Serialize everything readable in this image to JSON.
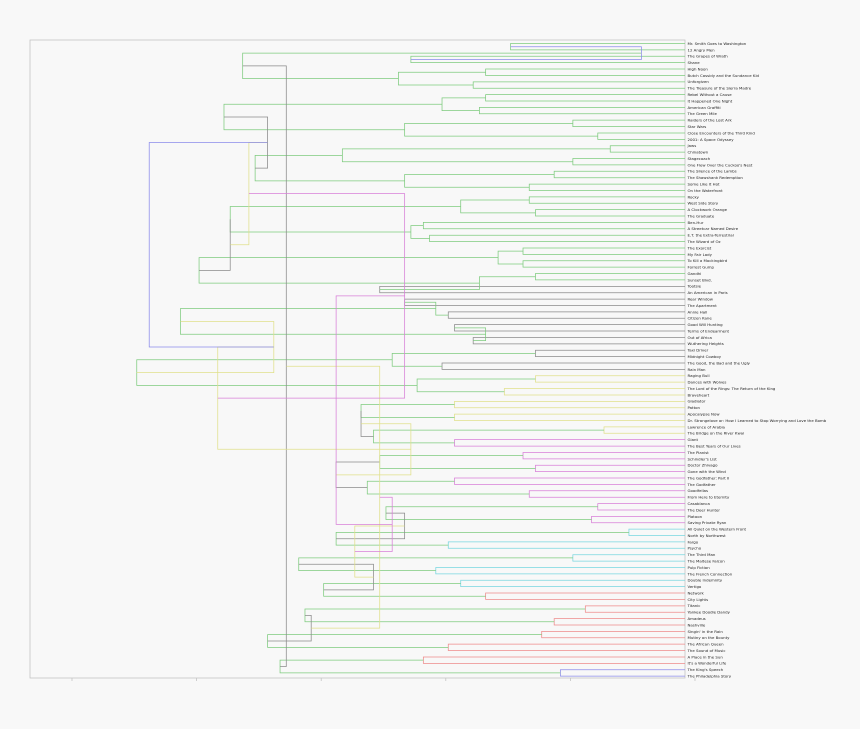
{
  "chart_data": {
    "type": "dendrogram",
    "orientation": "right",
    "grid": false,
    "colors": {
      "green": "#7ecb7e",
      "grey": "#8a8a8a",
      "yellow": "#e0e08a",
      "magenta": "#d77fd7",
      "cyan": "#77d6df",
      "red": "#ee8a8a",
      "blue": "#8b8bea",
      "axis": "#c4c4c4",
      "text": "#222222"
    },
    "leaves": [
      "Mr. Smith Goes to Washington",
      "12 Angry Men",
      "The Grapes of Wrath",
      "Shane",
      "High Noon",
      "Butch Cassidy and the Sundance Kid",
      "Unforgiven",
      "The Treasure of the Sierra Madre",
      "Rebel Without a Cause",
      "It Happened One Night",
      "American Graffiti",
      "The Green Mile",
      "Raiders of the Lost Ark",
      "Star Wars",
      "Close Encounters of the Third Kind",
      "2001: A Space Odyssey",
      "Jaws",
      "Chinatown",
      "Stagecoach",
      "One Flew Over the Cuckoo's Nest",
      "The Silence of the Lambs",
      "The Shawshank Redemption",
      "Some Like It Hot",
      "On the Waterfront",
      "Rocky",
      "West Side Story",
      "A Clockwork Orange",
      "The Graduate",
      "Ben-Hur",
      "A Streetcar Named Desire",
      "E.T. the Extra-Terrestrial",
      "The Wizard of Oz",
      "The Exorcist",
      "My Fair Lady",
      "To Kill a Mockingbird",
      "Forrest Gump",
      "Gandhi",
      "Sunset Blvd.",
      "Tootsie",
      "An American in Paris",
      "Rear Window",
      "The Apartment",
      "Annie Hall",
      "Citizen Kane",
      "Good Will Hunting",
      "Terms of Endearment",
      "Out of Africa",
      "Wuthering Heights",
      "Taxi Driver",
      "Midnight Cowboy",
      "The Good, the Bad and the Ugly",
      "Rain Man",
      "Raging Bull",
      "Dances with Wolves",
      "The Lord of the Rings: The Return of the King",
      "Braveheart",
      "Gladiator",
      "Patton",
      "Apocalypse Now",
      "Dr. Strangelove or: How I Learned to Stop Worrying and Love the Bomb",
      "Lawrence of Arabia",
      "The Bridge on the River Kwai",
      "Giant",
      "The Best Years of Our Lives",
      "The Pianist",
      "Schindler's List",
      "Doctor Zhivago",
      "Gone with the Wind",
      "The Godfather: Part II",
      "The Godfather",
      "Goodfellas",
      "From Here to Eternity",
      "Casablanca",
      "The Deer Hunter",
      "Platoon",
      "Saving Private Ryan",
      "All Quiet on the Western Front",
      "North by Northwest",
      "Fargo",
      "Psycho",
      "The Third Man",
      "The Maltese Falcon",
      "Pulp Fiction",
      "The French Connection",
      "Double Indemnity",
      "Vertigo",
      "Network",
      "City Lights",
      "Titanic",
      "Yankee Doodle Dandy",
      "Amadeus",
      "Nashville",
      "Singin' in the Rain",
      "Mutiny on the Bounty",
      "The African Queen",
      "The Sound of Music",
      "A Place in the Sun",
      "It's a Wonderful Life",
      "The King's Speech",
      "The Philadelphia Story"
    ],
    "merges": [
      [
        0,
        1,
        0.72,
        "green"
      ],
      [
        2,
        3,
        0.56,
        "green"
      ],
      [
        4,
        5,
        0.68,
        "green"
      ],
      [
        6,
        7,
        0.66,
        "green"
      ],
      [
        8,
        9,
        0.68,
        "green"
      ],
      [
        10,
        11,
        0.67,
        "green"
      ],
      [
        12,
        13,
        0.82,
        "green"
      ],
      [
        14,
        15,
        0.86,
        "green"
      ],
      [
        16,
        17,
        0.88,
        "green"
      ],
      [
        18,
        19,
        0.82,
        "green"
      ],
      [
        20,
        21,
        0.79,
        "green"
      ],
      [
        22,
        23,
        0.75,
        "green"
      ],
      [
        24,
        25,
        0.75,
        "green"
      ],
      [
        26,
        27,
        0.76,
        "green"
      ],
      [
        28,
        29,
        0.58,
        "green"
      ],
      [
        30,
        31,
        0.59,
        "green"
      ],
      [
        32,
        33,
        0.74,
        "green"
      ],
      [
        34,
        35,
        0.74,
        "green"
      ],
      [
        36,
        37,
        0.76,
        "green"
      ],
      [
        38,
        39,
        0.51,
        "grey"
      ],
      [
        40,
        41,
        0.55,
        "grey"
      ],
      [
        42,
        43,
        0.62,
        "grey"
      ],
      [
        44,
        45,
        0.63,
        "grey"
      ],
      [
        46,
        47,
        0.66,
        "grey"
      ],
      [
        48,
        49,
        0.76,
        "grey"
      ],
      [
        50,
        51,
        0.61,
        "grey"
      ],
      [
        52,
        53,
        0.76,
        "yellow"
      ],
      [
        54,
        55,
        0.71,
        "yellow"
      ],
      [
        56,
        57,
        0.63,
        "yellow"
      ],
      [
        58,
        59,
        0.63,
        "yellow"
      ],
      [
        60,
        61,
        0.87,
        "yellow"
      ],
      [
        62,
        63,
        0.63,
        "magenta"
      ],
      [
        64,
        65,
        0.74,
        "magenta"
      ],
      [
        66,
        67,
        0.76,
        "magenta"
      ],
      [
        68,
        69,
        0.63,
        "magenta"
      ],
      [
        70,
        71,
        0.75,
        "magenta"
      ],
      [
        72,
        73,
        0.86,
        "magenta"
      ],
      [
        74,
        75,
        0.85,
        "magenta"
      ],
      [
        76,
        77,
        0.91,
        "cyan"
      ],
      [
        78,
        79,
        0.62,
        "cyan"
      ],
      [
        80,
        81,
        0.82,
        "cyan"
      ],
      [
        82,
        83,
        0.6,
        "cyan"
      ],
      [
        84,
        85,
        0.64,
        "cyan"
      ],
      [
        86,
        87,
        0.68,
        "red"
      ],
      [
        88,
        89,
        0.84,
        "red"
      ],
      [
        90,
        91,
        0.79,
        "red"
      ],
      [
        92,
        93,
        0.77,
        "red"
      ],
      [
        94,
        95,
        0.62,
        "red"
      ],
      [
        96,
        97,
        0.58,
        "red"
      ],
      [
        98,
        99,
        0.8,
        "blue"
      ],
      [
        100,
        101,
        0.93,
        "blue"
      ],
      [
        102,
        103,
        0.54,
        "green"
      ],
      [
        104,
        105,
        0.61,
        "green"
      ],
      [
        106,
        107,
        0.55,
        "green"
      ],
      [
        108,
        109,
        0.45,
        "green"
      ],
      [
        110,
        111,
        0.55,
        "green"
      ],
      [
        112,
        113,
        0.64,
        "green"
      ],
      [
        114,
        115,
        0.56,
        "green"
      ],
      [
        116,
        117,
        0.7,
        "green"
      ],
      [
        118,
        119,
        0.67,
        "green"
      ],
      [
        120,
        121,
        0.6,
        "green"
      ],
      [
        122,
        123,
        0.68,
        "green"
      ],
      [
        124,
        125,
        0.53,
        "green"
      ],
      [
        126,
        127,
        0.57,
        "green"
      ],
      [
        128,
        129,
        0.48,
        "green"
      ],
      [
        130,
        131,
        0.5,
        "green"
      ],
      [
        132,
        133,
        0.51,
        "green"
      ],
      [
        134,
        135,
        0.49,
        "green"
      ],
      [
        136,
        137,
        0.52,
        "green"
      ],
      [
        138,
        139,
        0.44,
        "green"
      ],
      [
        140,
        141,
        0.38,
        "green"
      ],
      [
        142,
        143,
        0.42,
        "green"
      ],
      [
        144,
        145,
        0.39,
        "green"
      ],
      [
        146,
        147,
        0.33,
        "green"
      ],
      [
        148,
        149,
        0.35,
        "green"
      ],
      [
        150,
        151,
        0.29,
        "green"
      ],
      [
        152,
        153,
        0.26,
        "green"
      ],
      [
        154,
        155,
        0.31,
        "green"
      ],
      [
        156,
        157,
        0.27,
        "green"
      ],
      [
        158,
        159,
        0.22,
        "green"
      ],
      [
        160,
        161,
        0.19,
        "green"
      ],
      [
        162,
        163,
        0.12,
        "green"
      ],
      [
        164,
        165,
        0.48,
        "grey"
      ],
      [
        166,
        167,
        0.44,
        "grey"
      ],
      [
        168,
        169,
        0.55,
        "grey"
      ],
      [
        170,
        171,
        0.5,
        "grey"
      ],
      [
        172,
        173,
        0.4,
        "grey"
      ],
      [
        174,
        175,
        0.36,
        "grey"
      ],
      [
        176,
        177,
        0.33,
        "grey"
      ],
      [
        178,
        179,
        0.27,
        "grey"
      ],
      [
        180,
        181,
        0.34,
        "yellow"
      ],
      [
        182,
        183,
        0.56,
        "yellow"
      ],
      [
        184,
        185,
        0.47,
        "yellow"
      ],
      [
        186,
        187,
        0.51,
        "yellow"
      ],
      [
        188,
        189,
        0.3,
        "yellow"
      ],
      [
        190,
        191,
        0.25,
        "yellow"
      ],
      [
        192,
        193,
        0.53,
        "magenta"
      ],
      [
        194,
        195,
        0.55,
        "magenta"
      ],
      [
        196,
        197,
        0.44,
        "magenta"
      ],
      [
        198,
        199,
        0.36,
        "magenta"
      ],
      [
        200,
        201,
        0.34,
        "magenta"
      ],
      [
        202,
        203,
        0.38,
        "magenta"
      ],
      [
        204,
        205,
        0.29,
        "magenta"
      ],
      [
        206,
        207,
        0.24,
        "magenta"
      ],
      [
        208,
        209,
        0.38,
        "magenta"
      ],
      [
        210,
        211,
        0.2,
        "magenta"
      ],
      [
        212,
        213,
        0.57,
        "cyan"
      ],
      [
        214,
        215,
        0.5,
        "cyan"
      ],
      [
        216,
        217,
        0.43,
        "cyan"
      ],
      [
        218,
        219,
        0.4,
        "cyan"
      ],
      [
        220,
        221,
        0.37,
        "cyan"
      ],
      [
        222,
        223,
        0.35,
        "cyan"
      ],
      [
        224,
        225,
        0.42,
        "red"
      ],
      [
        226,
        227,
        0.54,
        "red"
      ],
      [
        228,
        229,
        0.45,
        "red"
      ],
      [
        230,
        231,
        0.4,
        "red"
      ],
      [
        232,
        233,
        0.38,
        "red"
      ],
      [
        234,
        235,
        0.3,
        "red"
      ],
      [
        236,
        237,
        0.24,
        "red"
      ],
      [
        238,
        239,
        0.27,
        "red"
      ],
      [
        240,
        241,
        0.19,
        "red"
      ],
      [
        242,
        243,
        0.55,
        "blue"
      ],
      [
        244,
        245,
        0.27,
        "blue"
      ],
      [
        188,
        190,
        0.14,
        "blue"
      ],
      [
        228,
        189,
        0.12,
        "blue"
      ],
      [
        246,
        245,
        0.1,
        "blue"
      ],
      [
        247,
        249,
        0.05,
        "blue"
      ],
      [
        250,
        248,
        0.0,
        "blue"
      ]
    ]
  }
}
